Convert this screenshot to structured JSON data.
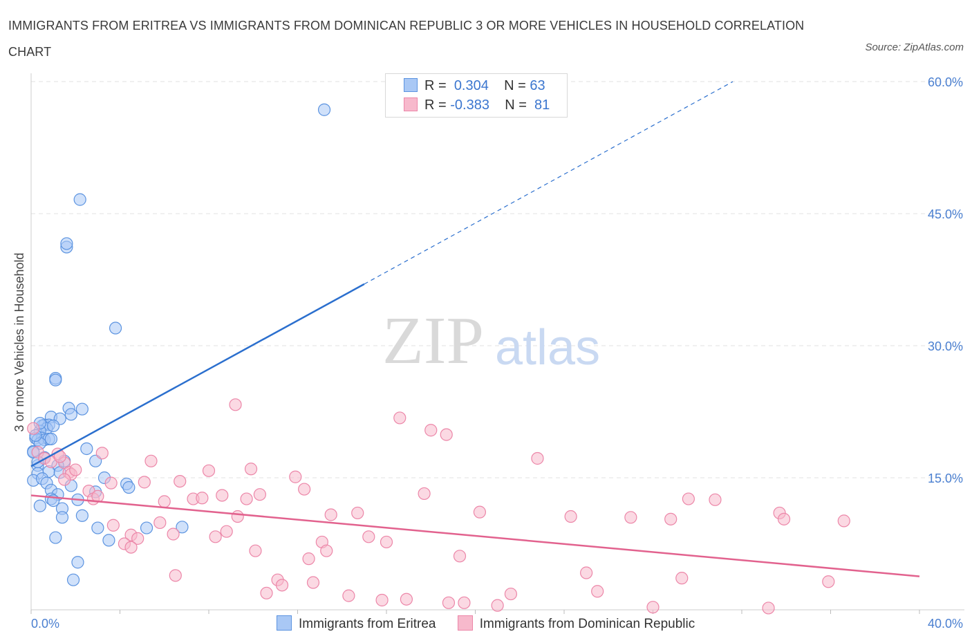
{
  "title_line1": "IMMIGRANTS FROM ERITREA VS IMMIGRANTS FROM DOMINICAN REPUBLIC 3 OR MORE VEHICLES IN HOUSEHOLD CORRELATION",
  "title_line2": "CHART",
  "source": "Source: ZipAtlas.com",
  "watermark": {
    "zip": "ZIP",
    "atlas": "atlas"
  },
  "legend": {
    "rows": [
      {
        "r_label": "R =",
        "r_value": "0.304",
        "n_label": "N =",
        "n_value": "63",
        "color": "#a9c8f5"
      },
      {
        "r_label": "R =",
        "r_value": "-0.383",
        "n_label": "N =",
        "n_value": "81",
        "color": "#f7b9cc"
      }
    ]
  },
  "bottom_legend": [
    {
      "label": "Immigrants from Eritrea",
      "color": "#a9c8f5"
    },
    {
      "label": "Immigrants from Dominican Republic",
      "color": "#f7b9cc"
    }
  ],
  "chart_data": {
    "type": "scatter",
    "title": "IMMIGRANTS FROM ERITREA VS IMMIGRANTS FROM DOMINICAN REPUBLIC 3 OR MORE VEHICLES IN HOUSEHOLD CORRELATION CHART",
    "xlabel": "",
    "ylabel": "3 or more Vehicles in Household",
    "xlim": [
      0,
      40
    ],
    "ylim": [
      0,
      60
    ],
    "x_tick_labels": [
      {
        "value": 0,
        "label": "0.0%"
      },
      {
        "value": 40,
        "label": "40.0%"
      }
    ],
    "y_tick_labels": [
      {
        "value": 15,
        "label": "15.0%"
      },
      {
        "value": 30,
        "label": "30.0%"
      },
      {
        "value": 45,
        "label": "45.0%"
      },
      {
        "value": 60,
        "label": "60.0%"
      }
    ],
    "grid": true,
    "series": [
      {
        "name": "Immigrants from Eritrea",
        "color": "#5b93e0",
        "fill": "#a9c8f5",
        "trend": {
          "x": [
            0,
            15
          ],
          "y": [
            16.3,
            37.0
          ],
          "dashed_to": [
            31.6,
            60.0
          ],
          "color": "#2b6fce"
        },
        "points": [
          [
            13.2,
            56.8
          ],
          [
            2.2,
            46.6
          ],
          [
            1.6,
            41.2
          ],
          [
            1.6,
            41.6
          ],
          [
            3.8,
            32.0
          ],
          [
            1.1,
            26.3
          ],
          [
            1.1,
            26.1
          ],
          [
            1.7,
            22.9
          ],
          [
            2.3,
            22.8
          ],
          [
            1.8,
            22.2
          ],
          [
            0.9,
            21.9
          ],
          [
            1.3,
            21.7
          ],
          [
            0.6,
            21.0
          ],
          [
            0.8,
            21.0
          ],
          [
            0.5,
            20.9
          ],
          [
            0.7,
            20.6
          ],
          [
            1.0,
            20.9
          ],
          [
            0.4,
            20.3
          ],
          [
            0.2,
            19.5
          ],
          [
            0.5,
            19.5
          ],
          [
            0.3,
            19.3
          ],
          [
            0.6,
            19.3
          ],
          [
            0.8,
            19.4
          ],
          [
            0.4,
            18.9
          ],
          [
            0.1,
            18.0
          ],
          [
            0.2,
            19.8
          ],
          [
            2.5,
            18.3
          ],
          [
            2.9,
            16.9
          ],
          [
            1.5,
            16.9
          ],
          [
            1.2,
            16.4
          ],
          [
            0.3,
            16.4
          ],
          [
            0.3,
            15.5
          ],
          [
            0.8,
            15.7
          ],
          [
            1.3,
            15.6
          ],
          [
            0.1,
            14.7
          ],
          [
            0.5,
            14.9
          ],
          [
            3.3,
            15.0
          ],
          [
            0.7,
            14.4
          ],
          [
            1.8,
            14.1
          ],
          [
            4.3,
            14.3
          ],
          [
            4.4,
            13.9
          ],
          [
            2.9,
            13.4
          ],
          [
            0.9,
            13.6
          ],
          [
            1.2,
            13.1
          ],
          [
            0.9,
            12.6
          ],
          [
            1.0,
            12.4
          ],
          [
            2.1,
            12.5
          ],
          [
            1.4,
            11.5
          ],
          [
            0.4,
            11.8
          ],
          [
            1.4,
            10.5
          ],
          [
            2.3,
            10.7
          ],
          [
            3.0,
            9.3
          ],
          [
            5.2,
            9.3
          ],
          [
            6.8,
            9.4
          ],
          [
            1.1,
            8.2
          ],
          [
            3.5,
            7.9
          ],
          [
            2.1,
            5.4
          ],
          [
            1.9,
            3.4
          ],
          [
            0.1,
            17.9
          ],
          [
            0.6,
            17.3
          ],
          [
            0.3,
            16.8
          ],
          [
            0.9,
            19.4
          ],
          [
            0.4,
            21.2
          ]
        ]
      },
      {
        "name": "Immigrants from Dominican Republic",
        "color": "#ec86a8",
        "fill": "#f7b9cc",
        "trend": {
          "x": [
            0,
            40
          ],
          "y": [
            13.0,
            3.8
          ],
          "color": "#e2628e"
        },
        "points": [
          [
            0.1,
            20.6
          ],
          [
            0.3,
            17.9
          ],
          [
            0.6,
            17.2
          ],
          [
            1.2,
            17.7
          ],
          [
            0.9,
            16.8
          ],
          [
            1.5,
            16.7
          ],
          [
            1.7,
            15.6
          ],
          [
            1.8,
            15.4
          ],
          [
            2.0,
            15.9
          ],
          [
            1.5,
            14.8
          ],
          [
            2.6,
            13.5
          ],
          [
            2.8,
            12.6
          ],
          [
            3.0,
            12.9
          ],
          [
            3.2,
            17.8
          ],
          [
            3.6,
            14.4
          ],
          [
            3.7,
            9.6
          ],
          [
            4.5,
            8.5
          ],
          [
            4.2,
            7.5
          ],
          [
            4.8,
            8.1
          ],
          [
            5.1,
            14.5
          ],
          [
            5.4,
            16.9
          ],
          [
            5.8,
            9.9
          ],
          [
            6.0,
            12.3
          ],
          [
            6.4,
            8.6
          ],
          [
            6.7,
            14.6
          ],
          [
            7.3,
            12.6
          ],
          [
            7.7,
            12.7
          ],
          [
            8.0,
            15.8
          ],
          [
            8.3,
            8.3
          ],
          [
            8.6,
            13.0
          ],
          [
            8.8,
            8.9
          ],
          [
            9.2,
            23.3
          ],
          [
            9.3,
            10.6
          ],
          [
            9.7,
            12.6
          ],
          [
            9.9,
            16.0
          ],
          [
            10.3,
            13.1
          ],
          [
            10.1,
            6.7
          ],
          [
            11.1,
            3.4
          ],
          [
            11.3,
            2.8
          ],
          [
            10.6,
            1.9
          ],
          [
            11.9,
            15.1
          ],
          [
            12.3,
            13.7
          ],
          [
            12.5,
            5.8
          ],
          [
            12.7,
            3.1
          ],
          [
            13.1,
            7.7
          ],
          [
            13.3,
            6.7
          ],
          [
            13.5,
            10.8
          ],
          [
            14.3,
            1.6
          ],
          [
            14.7,
            11.0
          ],
          [
            15.2,
            8.3
          ],
          [
            16.0,
            7.7
          ],
          [
            16.6,
            21.8
          ],
          [
            16.9,
            1.2
          ],
          [
            17.7,
            13.2
          ],
          [
            18.0,
            20.4
          ],
          [
            18.7,
            19.9
          ],
          [
            18.8,
            0.8
          ],
          [
            19.3,
            6.1
          ],
          [
            20.2,
            11.1
          ],
          [
            21.0,
            0.5
          ],
          [
            21.6,
            1.8
          ],
          [
            22.8,
            17.2
          ],
          [
            24.3,
            10.6
          ],
          [
            25.0,
            4.2
          ],
          [
            25.5,
            2.1
          ],
          [
            27.0,
            10.5
          ],
          [
            28.0,
            0.3
          ],
          [
            28.8,
            10.3
          ],
          [
            29.3,
            3.6
          ],
          [
            29.6,
            12.6
          ],
          [
            30.8,
            12.5
          ],
          [
            33.2,
            0.2
          ],
          [
            33.7,
            11.0
          ],
          [
            33.9,
            10.3
          ],
          [
            35.9,
            3.2
          ],
          [
            36.6,
            10.1
          ],
          [
            19.5,
            0.8
          ],
          [
            15.8,
            1.1
          ],
          [
            4.5,
            7.1
          ],
          [
            1.3,
            17.4
          ],
          [
            6.5,
            3.9
          ]
        ]
      }
    ]
  }
}
